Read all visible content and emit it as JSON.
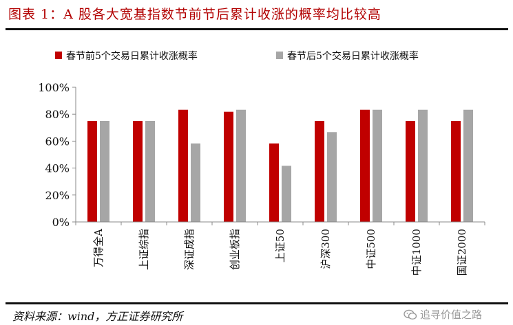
{
  "figure": {
    "title": "图表 1：A 股各大宽基指数节前节后累计收涨的概率均比较高",
    "source": "资料来源：wind，方正证券研究所",
    "watermark": "追寻价值之路"
  },
  "colors": {
    "series_before": "#c00000",
    "series_after": "#a6a6a6",
    "title_color": "#b20000",
    "axis": "#888888"
  },
  "chart_data": {
    "type": "bar",
    "categories": [
      "万得全A",
      "上证综指",
      "深证成指",
      "创业板指",
      "上证50",
      "沪深300",
      "中证500",
      "中证1000",
      "国证2000"
    ],
    "series": [
      {
        "name": "春节前5个交易日累计收涨概率",
        "values": [
          75,
          75,
          83.3,
          81.8,
          58.3,
          75,
          83.3,
          75,
          75
        ]
      },
      {
        "name": "春节后5个交易日累计收涨概率",
        "values": [
          75,
          75,
          58.3,
          83.3,
          41.7,
          66.7,
          83.3,
          83.3,
          83.3
        ]
      }
    ],
    "yticks": [
      "100%",
      "80%",
      "60%",
      "40%",
      "20%",
      "0%"
    ],
    "ylim": [
      0,
      100
    ],
    "grid": false,
    "legend_position": "top"
  }
}
